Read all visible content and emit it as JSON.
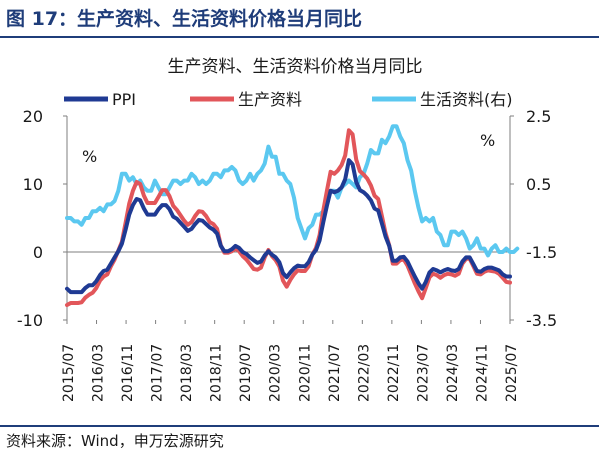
{
  "header": {
    "title": "图 17：生产资料、生活资料价格当月同比"
  },
  "source": "资料来源：Wind，申万宏源研究",
  "chart_data": {
    "type": "line",
    "title": "生产资料、生活资料价格当月同比",
    "left_axis": {
      "unit": "%",
      "min": -10,
      "max": 20,
      "ticks": [
        -10,
        0,
        10,
        20
      ]
    },
    "right_axis": {
      "unit": "%",
      "min": -3.5,
      "max": 2.5,
      "ticks": [
        -3.5,
        -1.5,
        0.5,
        2.5
      ]
    },
    "x_tick_labels": [
      "2015/07",
      "2016/03",
      "2016/11",
      "2017/07",
      "2018/03",
      "2018/11",
      "2019/07",
      "2020/03",
      "2020/11",
      "2021/07",
      "2022/03",
      "2022/11",
      "2023/07",
      "2024/03",
      "2024/11",
      "2025/07"
    ],
    "x_start": "2015/07",
    "x_end": "2025/07",
    "legend": [
      "PPI",
      "生产资料",
      "生活资料(右)"
    ],
    "grid": false,
    "series": [
      {
        "name": "PPI",
        "axis": "left",
        "color": "#1f3a93",
        "values": [
          -5.4,
          -5.9,
          -5.9,
          -5.9,
          -5.9,
          -5.3,
          -4.9,
          -4.9,
          -4.3,
          -3.4,
          -2.8,
          -2.6,
          -1.7,
          -0.8,
          0.1,
          1.2,
          3.3,
          5.5,
          6.9,
          7.8,
          7.6,
          6.4,
          5.5,
          5.5,
          5.5,
          6.3,
          6.9,
          6.9,
          6.3,
          5.2,
          4.9,
          4.3,
          3.7,
          3.1,
          3.4,
          4.1,
          4.7,
          4.6,
          4.1,
          3.6,
          3.3,
          2.7,
          0.9,
          0.1,
          0.1,
          0.4,
          0.9,
          0.6,
          0.0,
          -0.3,
          -0.8,
          -1.2,
          -1.6,
          -1.4,
          -0.5,
          0.1,
          -0.4,
          -0.8,
          -1.5,
          -3.1,
          -3.7,
          -3.0,
          -2.4,
          -2.0,
          -2.1,
          -2.1,
          -1.5,
          -0.4,
          0.3,
          1.7,
          4.4,
          6.8,
          9.0,
          8.8,
          9.0,
          9.5,
          10.7,
          13.5,
          12.9,
          10.3,
          9.1,
          8.8,
          8.3,
          7.6,
          6.4,
          6.1,
          4.2,
          2.3,
          0.9,
          -1.3,
          -1.3,
          -0.8,
          -0.7,
          -1.4,
          -2.5,
          -3.6,
          -4.6,
          -5.4,
          -4.4,
          -3.0,
          -2.5,
          -2.7,
          -3.0,
          -2.7,
          -2.5,
          -2.7,
          -2.8,
          -2.5,
          -1.4,
          -0.8,
          -0.8,
          -1.8,
          -2.8,
          -2.9,
          -2.5,
          -2.3,
          -2.3,
          -2.5,
          -2.7,
          -3.3,
          -3.6,
          -3.6
        ]
      },
      {
        "name": "生产资料",
        "axis": "left",
        "color": "#e2565a",
        "values": [
          -7.8,
          -7.5,
          -7.5,
          -7.5,
          -7.4,
          -6.7,
          -6.3,
          -6.0,
          -5.3,
          -4.2,
          -3.6,
          -3.3,
          -2.1,
          -1.1,
          0.2,
          1.5,
          4.3,
          7.1,
          9.0,
          10.3,
          10.0,
          8.3,
          7.2,
          7.2,
          7.2,
          8.1,
          9.1,
          9.1,
          8.2,
          6.8,
          6.2,
          5.4,
          4.6,
          4.0,
          4.4,
          5.3,
          6.0,
          5.9,
          5.3,
          4.4,
          4.1,
          3.4,
          1.0,
          -0.1,
          -0.1,
          0.1,
          0.5,
          0.1,
          -0.6,
          -1.1,
          -1.8,
          -2.5,
          -2.6,
          -2.3,
          -0.8,
          0.3,
          -0.6,
          -1.2,
          -2.1,
          -4.2,
          -5.1,
          -4.1,
          -3.3,
          -2.7,
          -2.8,
          -2.8,
          -2.1,
          -0.4,
          0.6,
          2.5,
          6.1,
          9.0,
          11.8,
          11.5,
          12.0,
          12.8,
          14.2,
          17.9,
          17.3,
          13.6,
          11.9,
          11.4,
          10.8,
          9.8,
          8.3,
          7.8,
          5.3,
          2.8,
          1.0,
          -1.7,
          -1.7,
          -1.2,
          -1.1,
          -2.0,
          -3.3,
          -4.6,
          -5.8,
          -6.8,
          -5.3,
          -3.7,
          -3.2,
          -3.4,
          -3.8,
          -3.4,
          -3.2,
          -3.3,
          -3.5,
          -3.2,
          -1.7,
          -1.0,
          -1.0,
          -2.1,
          -3.2,
          -3.3,
          -2.9,
          -2.7,
          -2.8,
          -2.9,
          -3.2,
          -3.8,
          -4.4,
          -4.5
        ]
      },
      {
        "name": "生活资料(右)",
        "axis": "right",
        "color": "#5bc8f0",
        "values": [
          -0.5,
          -0.5,
          -0.6,
          -0.6,
          -0.7,
          -0.5,
          -0.5,
          -0.3,
          -0.3,
          -0.2,
          -0.3,
          -0.1,
          -0.1,
          0.0,
          0.3,
          0.8,
          0.8,
          0.6,
          0.7,
          0.5,
          0.6,
          0.4,
          0.3,
          0.3,
          0.6,
          0.4,
          0.2,
          0.2,
          0.4,
          0.6,
          0.6,
          0.5,
          0.6,
          0.6,
          0.8,
          0.7,
          0.5,
          0.6,
          0.5,
          0.6,
          0.8,
          0.8,
          0.7,
          0.9,
          0.9,
          1.0,
          0.9,
          0.6,
          0.5,
          0.6,
          0.8,
          0.6,
          0.8,
          0.9,
          1.1,
          1.6,
          1.3,
          1.3,
          0.8,
          0.8,
          0.6,
          0.5,
          0.1,
          -0.5,
          -0.8,
          -1.1,
          -0.8,
          -0.7,
          -0.4,
          -0.4,
          -0.3,
          0.0,
          0.3,
          0.3,
          0.1,
          0.4,
          0.5,
          0.6,
          0.5,
          0.4,
          0.7,
          0.8,
          1.1,
          1.5,
          1.4,
          1.4,
          1.8,
          1.7,
          1.9,
          2.2,
          2.2,
          1.9,
          1.7,
          1.2,
          0.9,
          0.3,
          -0.2,
          -0.6,
          -0.5,
          -0.6,
          -0.5,
          -0.9,
          -1.0,
          -1.3,
          -1.3,
          -0.9,
          -0.9,
          -1.0,
          -0.9,
          -1.1,
          -1.4,
          -1.3,
          -1.1,
          -1.4,
          -1.4,
          -1.6,
          -1.4,
          -1.3,
          -1.5,
          -1.5,
          -1.4,
          -1.5,
          -1.5,
          -1.4
        ]
      }
    ]
  }
}
